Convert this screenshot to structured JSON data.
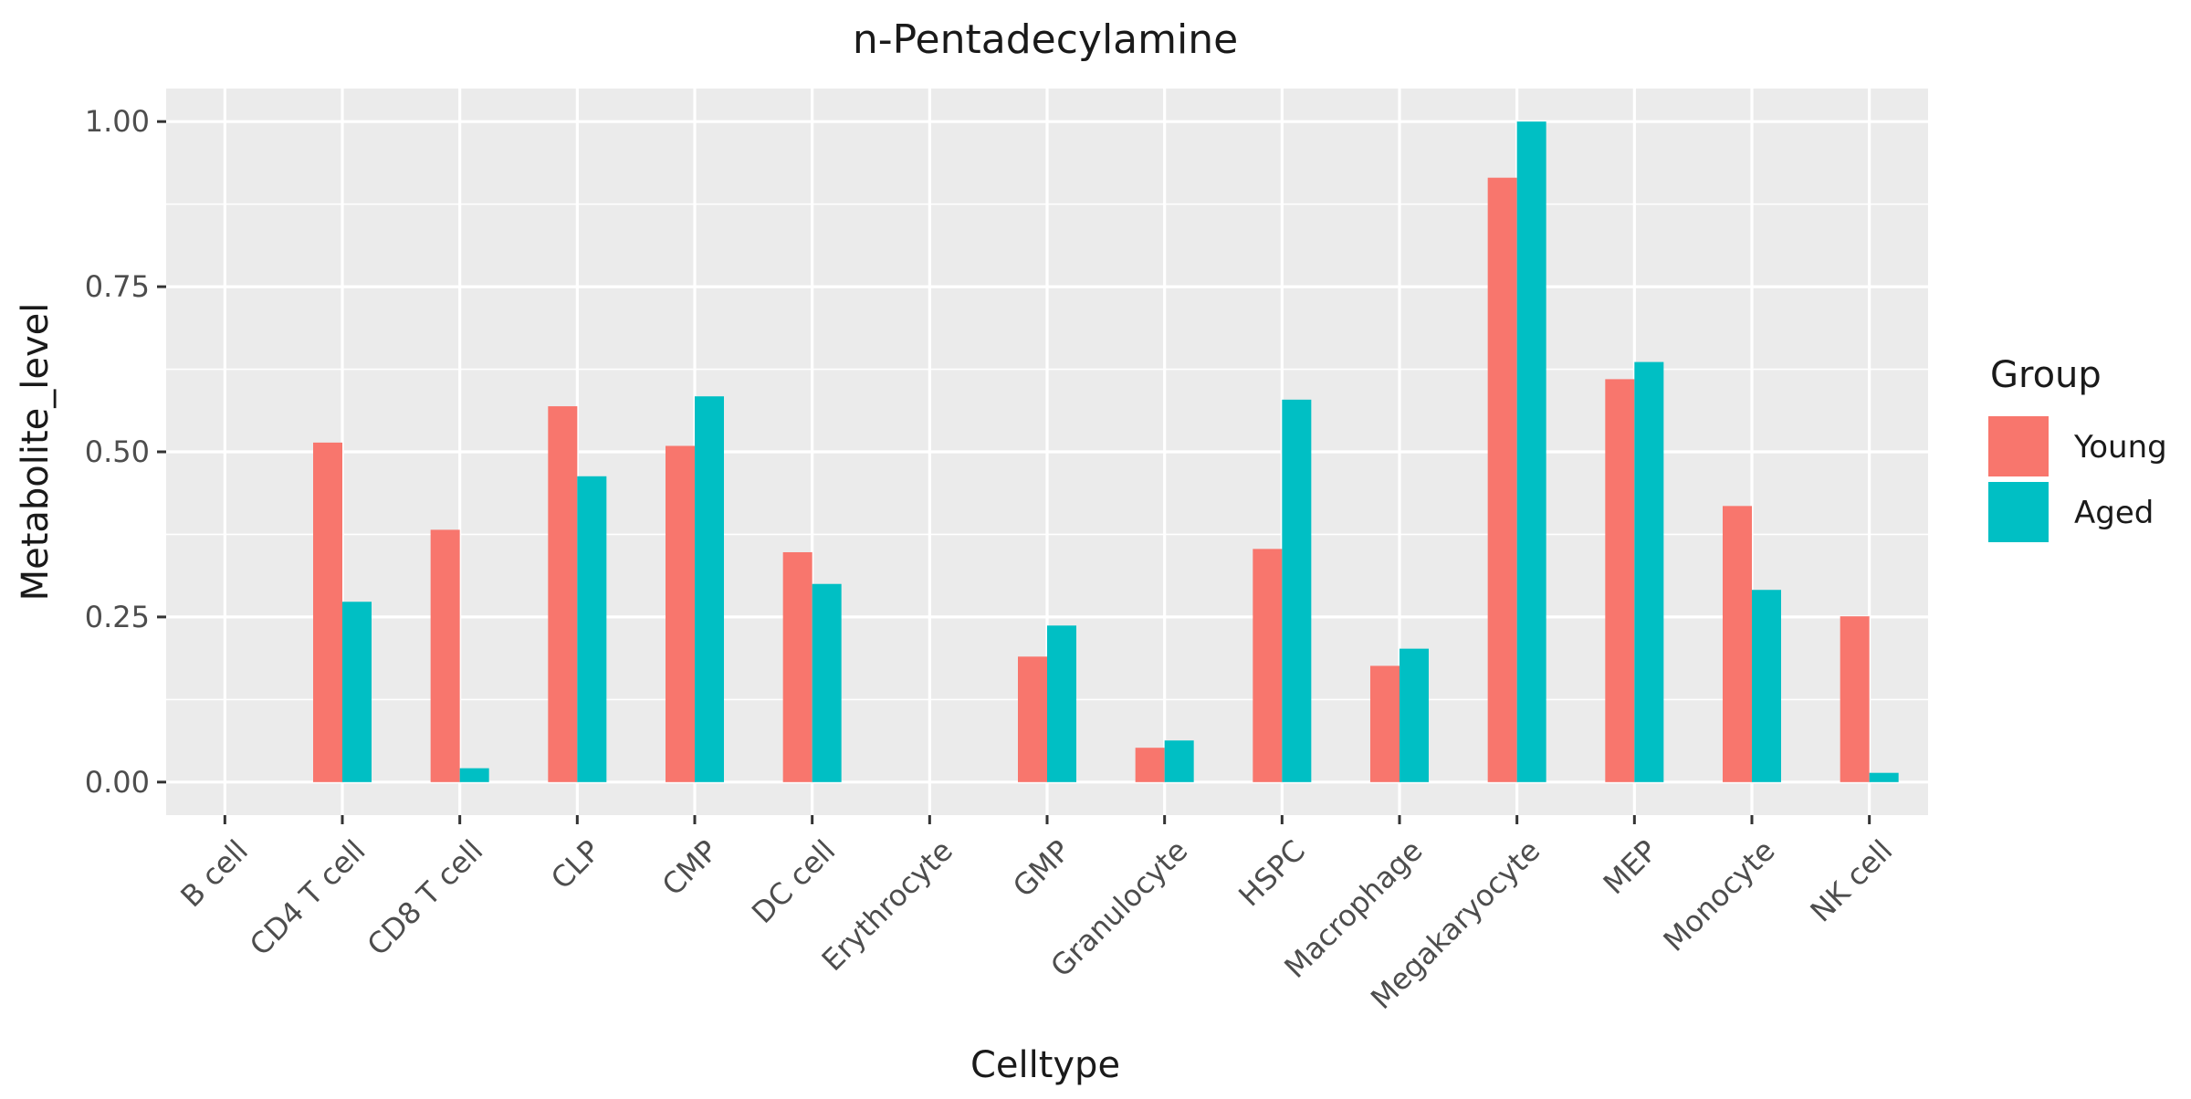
{
  "chart_data": {
    "type": "bar",
    "title": "n-Pentadecylamine",
    "xlabel": "Celltype",
    "ylabel": "Metabolite_level",
    "categories": [
      "B cell",
      "CD4 T cell",
      "CD8 T cell",
      "CLP",
      "CMP",
      "DC cell",
      "Erythrocyte",
      "GMP",
      "Granulocyte",
      "HSPC",
      "Macrophage",
      "Megakaryocyte",
      "MEP",
      "Monocyte",
      "NK cell"
    ],
    "series": [
      {
        "name": "Young",
        "color": "#F8766D",
        "values": [
          0,
          0.514,
          0.382,
          0.569,
          0.509,
          0.348,
          0,
          0.19,
          0.052,
          0.353,
          0.176,
          0.915,
          0.61,
          0.418,
          0.251
        ]
      },
      {
        "name": "Aged",
        "color": "#00BFC4",
        "values": [
          0,
          0.273,
          0.021,
          0.463,
          0.584,
          0.3,
          0,
          0.237,
          0.063,
          0.579,
          0.202,
          1.0,
          0.636,
          0.291,
          0.014
        ]
      }
    ],
    "ylim": [
      -0.05,
      1.05
    ],
    "yticks": [
      0.0,
      0.25,
      0.5,
      0.75,
      1.0
    ],
    "ytick_labels": [
      "0.00",
      "0.25",
      "0.50",
      "0.75",
      "1.00"
    ],
    "legend": {
      "title": "Group",
      "placement": "right"
    },
    "grid": true,
    "panel_background": "#EBEBEB"
  }
}
